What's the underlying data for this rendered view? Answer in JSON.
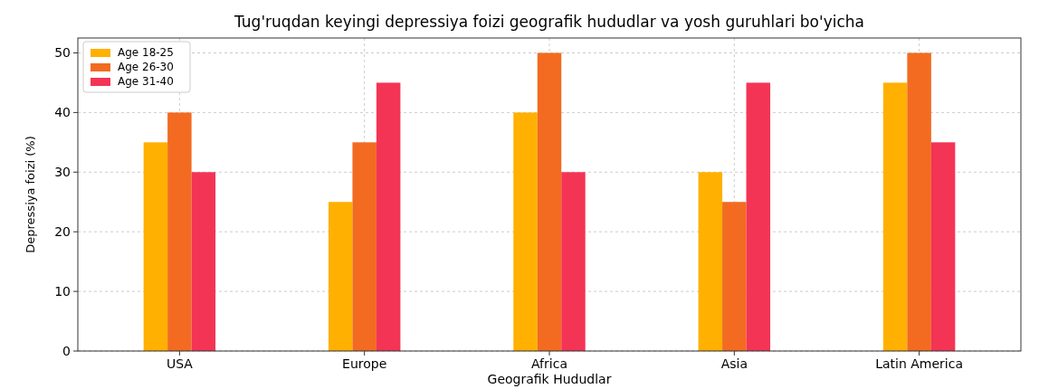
{
  "chart_data": {
    "type": "bar",
    "title": "Tug'ruqdan keyingi depressiya foizi geografik hududlar va yosh guruhlari bo'yicha",
    "xlabel": "Geografik Hududlar",
    "ylabel": "Depressiya foizi (%)",
    "categories": [
      "USA",
      "Europe",
      "Africa",
      "Asia",
      "Latin America"
    ],
    "series": [
      {
        "name": "Age 18-25",
        "color": "#ffb000",
        "values": [
          35,
          25,
          40,
          30,
          45
        ]
      },
      {
        "name": "Age 26-30",
        "color": "#f26b21",
        "values": [
          40,
          35,
          50,
          25,
          50
        ]
      },
      {
        "name": "Age 31-40",
        "color": "#f43455",
        "values": [
          30,
          45,
          30,
          45,
          35
        ]
      }
    ],
    "ylim": [
      0,
      52.5
    ],
    "yticks": [
      0,
      10,
      20,
      30,
      40,
      50
    ],
    "grid": true,
    "legend": "top left"
  }
}
